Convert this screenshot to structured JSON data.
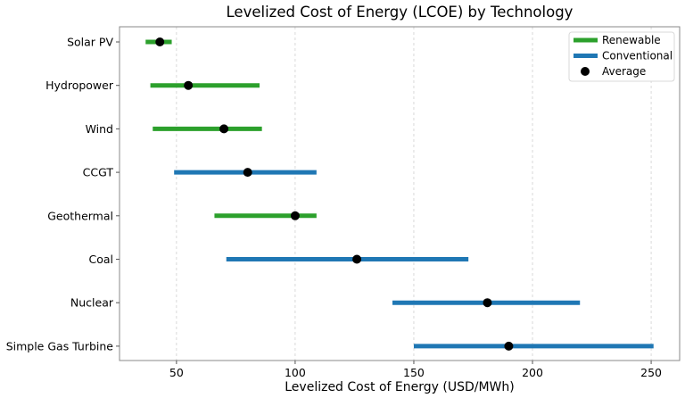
{
  "chart_data": {
    "type": "range-dot",
    "title": "Levelized Cost of Energy (LCOE) by Technology",
    "xlabel": "Levelized Cost of Energy (USD/MWh)",
    "ylabel": "",
    "xlim": [
      26,
      262
    ],
    "xticks": [
      50,
      100,
      150,
      200,
      250
    ],
    "grid": "x-dashed",
    "legend": {
      "placement": "top-right",
      "entries": [
        {
          "label": "Renewable",
          "kind": "line",
          "color": "#2ca02c"
        },
        {
          "label": "Conventional",
          "kind": "line",
          "color": "#1f77b4"
        },
        {
          "label": "Average",
          "kind": "dot",
          "color": "#000000"
        }
      ]
    },
    "colors": {
      "Renewable": "#2ca02c",
      "Conventional": "#1f77b4",
      "Average": "#000000"
    },
    "categories": [
      "Solar PV",
      "Hydropower",
      "Wind",
      "CCGT",
      "Geothermal",
      "Coal",
      "Nuclear",
      "Simple Gas Turbine"
    ],
    "series": [
      {
        "name": "Solar PV",
        "type": "Renewable",
        "min": 37,
        "max": 48,
        "avg": 43
      },
      {
        "name": "Hydropower",
        "type": "Renewable",
        "min": 39,
        "max": 85,
        "avg": 55
      },
      {
        "name": "Wind",
        "type": "Renewable",
        "min": 40,
        "max": 86,
        "avg": 70
      },
      {
        "name": "CCGT",
        "type": "Conventional",
        "min": 49,
        "max": 109,
        "avg": 80
      },
      {
        "name": "Geothermal",
        "type": "Renewable",
        "min": 66,
        "max": 109,
        "avg": 100
      },
      {
        "name": "Coal",
        "type": "Conventional",
        "min": 71,
        "max": 173,
        "avg": 126
      },
      {
        "name": "Nuclear",
        "type": "Conventional",
        "min": 141,
        "max": 220,
        "avg": 181
      },
      {
        "name": "Simple Gas Turbine",
        "type": "Conventional",
        "min": 150,
        "max": 251,
        "avg": 190
      }
    ]
  }
}
